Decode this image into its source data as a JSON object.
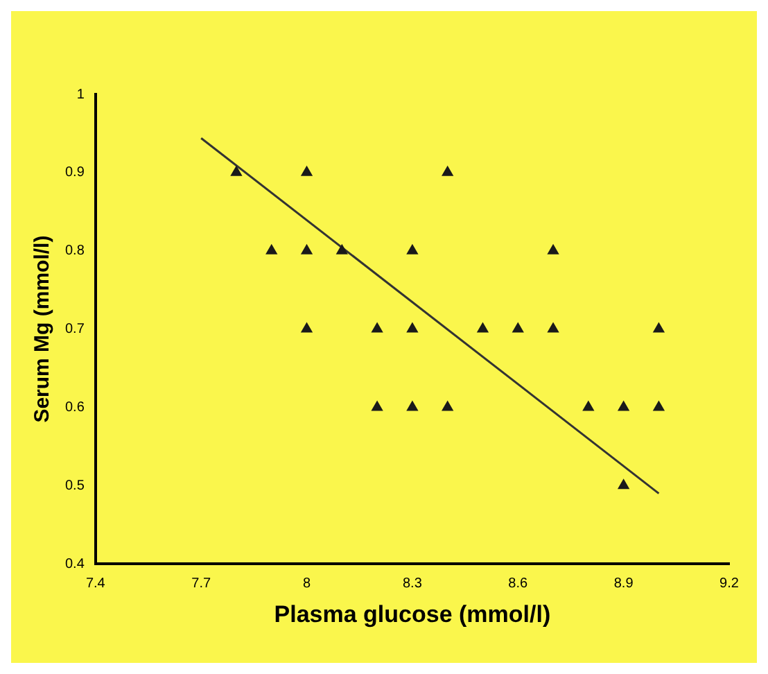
{
  "chart_data": {
    "type": "scatter",
    "xlabel": "Plasma glucose (mmol/l)",
    "ylabel": "Serum Mg (mmol/l)",
    "xlim": [
      7.4,
      9.2
    ],
    "xticks": [
      7.4,
      7.7,
      8,
      8.3,
      8.6,
      8.9,
      9.2
    ],
    "ylim": [
      0.4,
      1
    ],
    "yticks": [
      0.4,
      0.5,
      0.6,
      0.7,
      0.8,
      0.9,
      1
    ],
    "grid": false,
    "legend": false,
    "series": [
      {
        "marker": "triangle",
        "color": "#1a1a1a",
        "x": [
          7.8,
          8.0,
          8.4,
          7.9,
          8.0,
          8.1,
          8.3,
          8.7,
          8.0,
          8.2,
          8.3,
          8.5,
          8.6,
          8.7,
          9.0,
          8.2,
          8.3,
          8.4,
          8.8,
          8.9,
          9.0,
          8.9
        ],
        "values": [
          0.9,
          0.9,
          0.9,
          0.8,
          0.8,
          0.8,
          0.8,
          0.8,
          0.7,
          0.7,
          0.7,
          0.7,
          0.7,
          0.7,
          0.7,
          0.6,
          0.6,
          0.6,
          0.6,
          0.6,
          0.6,
          0.5
        ]
      },
      {
        "type": "line",
        "color": "#333333",
        "x": [
          7.7,
          9.0
        ],
        "values": [
          0.944,
          0.49
        ]
      }
    ]
  }
}
